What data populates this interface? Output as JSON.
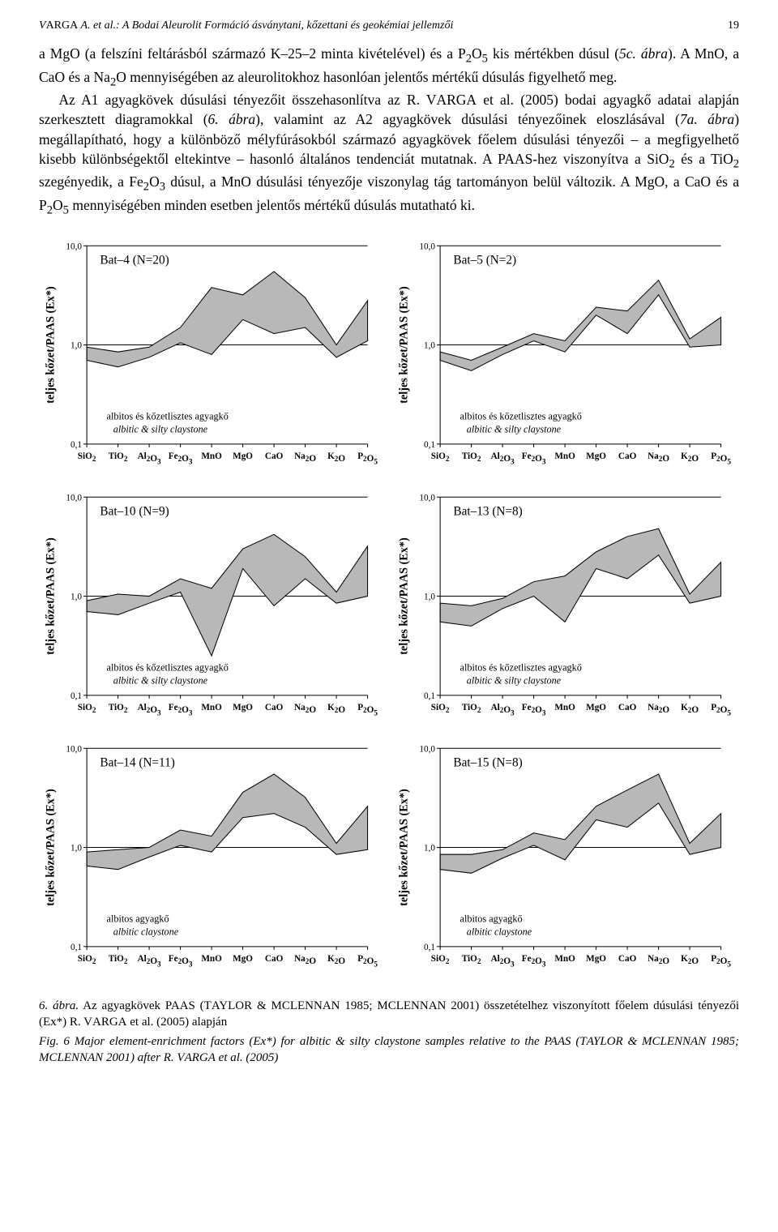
{
  "page": {
    "running_head": "V<span class='sc'>ARGA</span> A. et al.: A Bodai Aleurolit Formáció ásványtani, kőzettani és geokémiai jellemzői",
    "number": "19"
  },
  "paragraph": "a MgO (a felszíni feltárásból származó K–25–2 minta kivételével) és a P<sub>2</sub>O<sub>5</sub> kis mértékben dúsul (<i>5c. ábra</i>). A MnO, a CaO és a Na<sub>2</sub>O mennyiségében az aleurolitokhoz hasonlóan jelentős mértékű dúsulás figyelhető meg.<br>&nbsp;&nbsp;&nbsp;Az A1 agyagkövek dúsulási tényezőit összehasonlítva az R. V<span class='sc'>ARGA</span> et al. (2005) bodai agyagkő adatai alapján szerkesztett diagramokkal (<i>6. ábra</i>), valamint az A2 agyagkövek dúsulási tényezőinek eloszlásával (<i>7a. ábra</i>) megállapítható, hogy a különböző mélyfúrásokból származó agyagkövek főelem dúsulási tényezői – a megfigyelhető kisebb különbségektől eltekintve – hasonló általános tendenciát mutatnak. A PAAS-hez viszonyítva a SiO<sub>2</sub> és a TiO<sub>2</sub> szegényedik, a Fe<sub>2</sub>O<sub>3</sub> dúsul, a MnO dúsulási tényezője viszonylag tág tartományon belül változik. A MgO, a CaO és a P<sub>2</sub>O<sub>5</sub> mennyiségében minden esetben jelentős mértékű dúsulás mutatható ki.",
  "chart_common": {
    "x_categories": [
      "SiO₂",
      "TiO₂",
      "Al₂O₃",
      "Fe₂O₃",
      "MnO",
      "MgO",
      "CaO",
      "Na₂O",
      "K₂O",
      "P₂O₅"
    ],
    "y_label": "teljes kőzet/PAAS (Ex*)",
    "y_ticks": [
      "0,1",
      "1,0",
      "10,0"
    ],
    "y_scale": "log",
    "ylim": [
      0.1,
      10
    ],
    "grid_color": "#000000",
    "fill_color": "#b8b8b8",
    "stroke_color": "#000000",
    "bg_color": "#ffffff",
    "title_fontsize": 15,
    "axis_fontsize": 11,
    "tick_fontsize": 11,
    "label_fontsize": 14,
    "legend_fontsize": 12
  },
  "charts": [
    {
      "title": "Bat–4 (N=20)",
      "legend_hu": "albitos és kőzetlisztes agyagkő",
      "legend_en": "albitic & silty claystone",
      "upper": [
        0.95,
        0.85,
        0.95,
        1.5,
        3.8,
        3.2,
        5.5,
        3.0,
        1.0,
        2.8
      ],
      "lower": [
        0.7,
        0.6,
        0.75,
        1.05,
        0.8,
        1.8,
        1.3,
        1.5,
        0.75,
        1.1
      ]
    },
    {
      "title": "Bat–5 (N=2)",
      "legend_hu": "albitos és kőzetlisztes agyagkő",
      "legend_en": "albitic & silty claystone",
      "upper": [
        0.85,
        0.7,
        0.95,
        1.3,
        1.1,
        2.4,
        2.2,
        4.5,
        1.15,
        1.9
      ],
      "lower": [
        0.7,
        0.55,
        0.8,
        1.1,
        0.85,
        2.0,
        1.3,
        3.2,
        0.95,
        1.0
      ]
    },
    {
      "title": "Bat–10 (N=9)",
      "legend_hu": "albitos és kőzetlisztes agyagkő",
      "legend_en": "albitic & silty claystone",
      "upper": [
        0.9,
        1.05,
        1.0,
        1.5,
        1.2,
        3.0,
        4.2,
        2.5,
        1.1,
        3.2
      ],
      "lower": [
        0.7,
        0.65,
        0.85,
        1.1,
        0.25,
        1.9,
        0.8,
        1.5,
        0.85,
        1.0
      ]
    },
    {
      "title": "Bat–13 (N=8)",
      "legend_hu": "albitos és kőzetlisztes agyagkő",
      "legend_en": "albitic & silty claystone",
      "upper": [
        0.85,
        0.8,
        0.95,
        1.4,
        1.6,
        2.8,
        4.0,
        4.8,
        1.05,
        2.2
      ],
      "lower": [
        0.55,
        0.5,
        0.75,
        1.0,
        0.55,
        1.9,
        1.5,
        2.6,
        0.85,
        1.0
      ]
    },
    {
      "title": "Bat–14 (N=11)",
      "legend_hu": "albitos agyagkő",
      "legend_en": "albitic claystone",
      "upper": [
        0.9,
        0.95,
        1.0,
        1.5,
        1.3,
        3.6,
        5.5,
        3.2,
        1.1,
        2.6
      ],
      "lower": [
        0.65,
        0.6,
        0.8,
        1.05,
        0.9,
        2.0,
        2.2,
        1.6,
        0.85,
        0.95
      ]
    },
    {
      "title": "Bat–15 (N=8)",
      "legend_hu": "albitos agyagkő",
      "legend_en": "albitic claystone",
      "upper": [
        0.85,
        0.85,
        0.95,
        1.4,
        1.2,
        2.6,
        3.8,
        5.5,
        1.1,
        2.2
      ],
      "lower": [
        0.6,
        0.55,
        0.78,
        1.05,
        0.75,
        1.9,
        1.6,
        2.8,
        0.85,
        1.0
      ]
    }
  ],
  "caption_hu": "<i>6. ábra.</i> Az agyagkövek PAAS (T<span class='sc'>AYLOR</span> &amp; M<span class='sc'>CLENNAN</span> 1985; M<span class='sc'>CLENNAN</span> 2001) összetételhez viszonyított főelem dúsulási tényezői (Ex*) R. V<span class='sc'>ARGA</span> et al. (2005) alapján",
  "caption_en": "Fig. 6 Major element-enrichment factors (Ex*) for albitic &amp; silty claystone samples relative to the PAAS (T<span class='sc'>AYLOR</span> &amp; M<span class='sc'>CLENNAN</span> 1985; M<span class='sc'>CLENNAN</span> 2001) after R. V<span class='sc'>ARGA</span> et al. (2005)"
}
